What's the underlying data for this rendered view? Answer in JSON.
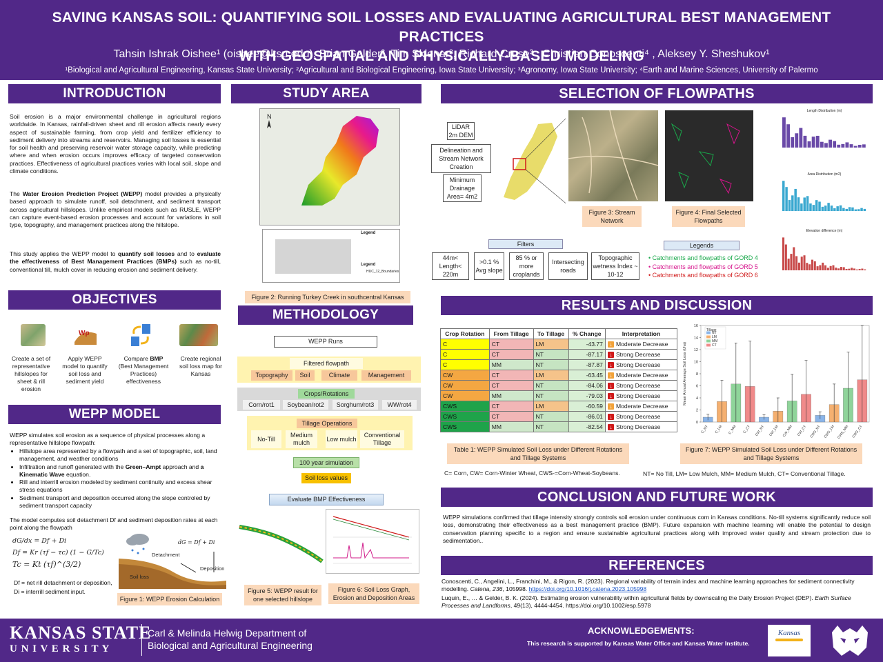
{
  "header": {
    "title_line1": "SAVING KANSAS SOIL: QUANTIFYING SOIL LOSSES AND EVALUATING AGRICULTURAL BEST MANAGEMENT PRACTICES",
    "title_line2": "WITH GEOSPATIAL AND PHYSICALLY-BASED MODELING",
    "authors": "Tahsin Ishrak Oishee¹ (oishee@ksu.edu), Brian Gelder², Tim Sklenar³, Richard Cruse³ , Christian Conoscenti⁴  , Aleksey Y. Sheshukov¹",
    "affiliations": "¹Biological and Agricultural Engineering, Kansas State University; ²Agricultural and Biological Engineering, Iowa State University; ³Agronomy, Iowa State University; ⁴Earth and Marine Sciences, University of Palermo"
  },
  "introduction": {
    "heading": "INTRODUCTION",
    "p1": "Soil erosion is a major environmental challenge in agricultural regions worldwide. In Kansas, rainfall-driven sheet and rill erosion affects nearly every aspect of sustainable farming, from crop yield and fertilizer efficiency to sediment delivery into streams and reservoirs. Managing soil losses is essential for soil health and preserving reservoir water storage capacity, while predicting where and when erosion occurs improves efficacy of targeted conservation practices. Effectiveness of agricultural practices varies with local soil, slope and climate  conditions.",
    "p2_pre": "The ",
    "p2_bold": "Water Erosion Prediction Project (WEPP)",
    "p2_post": " model provides a physically based approach to simulate runoff, soil detachment, and sediment transport across agricultural hillslopes. Unlike empirical models such as RUSLE, WEPP can capture event-based erosion processes and account for variations in soil type, topography, and management practices along the hillslope.",
    "p3_pre": "This study applies the WEPP model to ",
    "p3_bold1": "quantify soil losses",
    "p3_mid": " and to ",
    "p3_bold2": "evaluate the effectiveness of Best Management Practices (BMPs)",
    "p3_post": " such as no-till, conventional till, mulch cover in reducing erosion and sediment delivery."
  },
  "objectives": {
    "heading": "OBJECTIVES",
    "items": [
      "Create a set of representative hillslopes for sheet & rill erosion",
      "Apply WEPP model to quantify soil loss and sediment yield",
      "Compare BMP (Best Management Practices) effectiveness",
      "Create regional soil loss map for Kansas"
    ]
  },
  "wepp_model": {
    "heading": "WEPP MODEL",
    "intro": "WEPP simulates soil erosion as a sequence of physical processes along a representative hillslope flowpath:",
    "bullets": [
      "Hillslope area represented by a flowpath and a set of topographic, soil, land management, and weather conditions",
      "Infiltration and runoff generated with the Green–Ampt approach and a Kinematic Wave equation.",
      "Rill and interrill erosion modeled by sediment continuity and excess shear stress equations",
      "Sediment transport and deposition occurred along the slope controled by sediment transport capacity"
    ],
    "closing": "The model computes soil detachment Df and sediment deposition rates at each point along the flowpath",
    "eq1": "dG/dx = Df + Di",
    "eq2": "Df = Kr (τf − τc) (1 − G/Tc)",
    "eq3": "Tc = Kt (τf)^(3/2)",
    "eq4": "dG = Df + Di",
    "def1": "Df = net rill detachment or deposition,",
    "def2": "Di = interrill sediment input.",
    "label_detachment": "Detachment",
    "label_deposition": "Deposition",
    "label_soil_loss": "Soil loss",
    "caption": "Figure 1: WEPP Erosion Calculation"
  },
  "study_area": {
    "heading": "STUDY AREA",
    "north": "N",
    "legend_title": "Legend",
    "legend2_title": "Legend",
    "legend2_item": "HUC_12_Boundaries",
    "caption": "Figure 2: Running Turkey Creek in southcentral Kansas"
  },
  "methodology": {
    "heading": "METHODOLOGY",
    "wepp_runs": "WEPP Runs",
    "filtered": "Filtered flowpath",
    "inputs": [
      "Topography",
      "Soil",
      "Climate",
      "Management"
    ],
    "crops_title": "Crops/Rotations",
    "crops": [
      "Corn/rot1",
      "Soybean/rot2",
      "Sorghum/rot3",
      "WW/rot4"
    ],
    "tillage_title": "Tillage Operations",
    "tillage": [
      "No-Till",
      "Medium mulch",
      "Low mulch",
      "Conventional Tillage"
    ],
    "sim": "100 year simulation",
    "soilloss": "Soil loss values",
    "evaluate": "Evaluate BMP Effectiveness",
    "caption5": "Figure 5: WEPP result for one selected hillslope",
    "caption6": "Figure 6: Soil Loss Graph, Erosion and Deposition Areas"
  },
  "selection": {
    "heading": "SELECTION OF FLOWPATHS",
    "lidar": "LiDAR 2m DEM",
    "delineation": "Delineation and Stream Network Creation",
    "min_drainage": "Minimum Drainage Area= 4m2",
    "caption3": "Figure 3: Stream Network",
    "caption4": "Figure 4: Final Selected Flowpaths",
    "filters_title": "Filters",
    "filters": [
      "44m< Length< 220m",
      ">0.1 % Avg slope",
      "85 % or more croplands",
      "Intersecting roads",
      "Topographic wetness Index ~ 10-12"
    ],
    "legends_title": "Legends",
    "legends": [
      {
        "text": "Catchments and flowpaths of GORD 4",
        "color": "#19a84a"
      },
      {
        "text": "Catchments and flowpaths of GORD 5",
        "color": "#d6148c"
      },
      {
        "text": "Catchments and flowpaths of GORD 6",
        "color": "#d11b1b"
      }
    ],
    "hist_titles": [
      "Length Distribution (m)",
      "Area Distribution (m2)",
      "Elevation difference (m)"
    ]
  },
  "results": {
    "heading": "RESULTS AND DISCUSSION",
    "table_headers": [
      "Crop Rotation",
      "From Tillage",
      "To Tillage",
      "% Change",
      "Interpretation"
    ],
    "rows": [
      {
        "crop": "C",
        "from": "CT",
        "to": "LM",
        "pct": "-43.77",
        "interp": "Moderate Decrease",
        "strong": false
      },
      {
        "crop": "C",
        "from": "CT",
        "to": "NT",
        "pct": "-87.17",
        "interp": "Strong Decrease",
        "strong": true
      },
      {
        "crop": "C",
        "from": "MM",
        "to": "NT",
        "pct": "-87.87",
        "interp": "Strong Decrease",
        "strong": true
      },
      {
        "crop": "CW",
        "from": "CT",
        "to": "LM",
        "pct": "-63.45",
        "interp": "Moderate Decrease",
        "strong": false
      },
      {
        "crop": "CW",
        "from": "CT",
        "to": "NT",
        "pct": "-84.06",
        "interp": "Strong Decrease",
        "strong": true
      },
      {
        "crop": "CW",
        "from": "MM",
        "to": "NT",
        "pct": "-79.03",
        "interp": "Strong Decrease",
        "strong": true
      },
      {
        "crop": "CWS",
        "from": "CT",
        "to": "LM",
        "pct": "-60.59",
        "interp": "Moderate Decrease",
        "strong": false
      },
      {
        "crop": "CWS",
        "from": "CT",
        "to": "NT",
        "pct": "-86.01",
        "interp": "Strong Decrease",
        "strong": true
      },
      {
        "crop": "CWS",
        "from": "MM",
        "to": "NT",
        "pct": "-82.54",
        "interp": "Strong Decrease",
        "strong": true
      }
    ],
    "caption1": "Table 1: WEPP Simulated Soil Loss under Different Rotations and Tillage Systems",
    "caption7": "Figure 7: WEPP Simulated Soil Loss under Different Rotations and Tillage Systems",
    "note_left": "C= Corn, CW= Corn-Winter Wheat, CWS-=Corn-Wheat-Soybeans.",
    "note_right": "NT= No Till, LM= Low Mulch, MM= Medium Mulch, CT= Conventional Tillage."
  },
  "chart_data": {
    "type": "bar",
    "ylabel": "Mean Annual Average Soil Loss (t/ha)",
    "ylim": [
      0,
      16
    ],
    "yticks": [
      0,
      2,
      4,
      6,
      8,
      10,
      12,
      14,
      16
    ],
    "legend_title": "Tillage",
    "legend": [
      {
        "name": "NT",
        "color": "#8ab4e8"
      },
      {
        "name": "LM",
        "color": "#f5b070"
      },
      {
        "name": "MM",
        "color": "#8fd49a"
      },
      {
        "name": "CT",
        "color": "#f08a8a"
      }
    ],
    "categories": [
      "C_NT",
      "C_LM",
      "C_MM",
      "C_CT",
      "CW_NT",
      "CW_LM",
      "CW_MM",
      "CW_CT",
      "CWS_NT",
      "CWS_LM",
      "CWS_MM",
      "CWS_CT"
    ],
    "values": [
      0.8,
      3.4,
      6.3,
      5.9,
      0.8,
      1.8,
      3.5,
      4.6,
      1.1,
      2.9,
      5.6,
      7.0
    ],
    "errors": [
      0.5,
      3.5,
      6.8,
      7.5,
      0.4,
      2.2,
      4.4,
      5.6,
      0.6,
      3.4,
      6.0,
      9.0
    ],
    "tillage": [
      "NT",
      "LM",
      "MM",
      "CT",
      "NT",
      "LM",
      "MM",
      "CT",
      "NT",
      "LM",
      "MM",
      "CT"
    ]
  },
  "conclusion": {
    "heading": "CONCLUSION AND FUTURE WORK",
    "text": "WEPP simulations confirmed that tillage intensity strongly controls soil erosion under continuous corn in Kansas conditions. No-till systems significantly reduce soil loss, demonstrating their effectiveness as a best management practice (BMP). Future expansion with machine learning will enable the potential to design conservation planning specific to a region and ensure sustainable agricultural practices along with improved water quality and stream protection due to sedimentation.."
  },
  "references": {
    "heading": "REFERENCES",
    "ref1_a": "Conoscenti, C., Angelini, L., Franchini, M., & Rigon, R. (2023). Regional variability of terrain index and machine learning approaches for sediment connectivity modelling. ",
    "ref1_j": "Catena, 236",
    "ref1_b": ", 105998. ",
    "ref1_link": "https://doi.org/10.1016/j.catena.2023.105998",
    "ref2_a": "Luquin, E., … & Gelder, B. K. (2024). Estimating erosion vulnerability within agricultural fields by downscaling the Daily Erosion Project (DEP). ",
    "ref2_j": "Earth Surface Processes and Landforms",
    "ref2_b": ", 49(13), 4444-4454. https://doi.org/10.1002/esp.5978"
  },
  "footer": {
    "logo_top": "KANSAS STATE",
    "logo_bottom": "U N I V E R S I T Y",
    "dept1": "Carl & Melinda Helwig Department of",
    "dept2": "Biological and Agricultural Engineering",
    "ack_title": "ACKNOWLEDGEMENTS:",
    "ack_text": "This research is supported by Kansas Water Office and Kansas Water Institute.",
    "kwo_logo": "Kansas"
  }
}
